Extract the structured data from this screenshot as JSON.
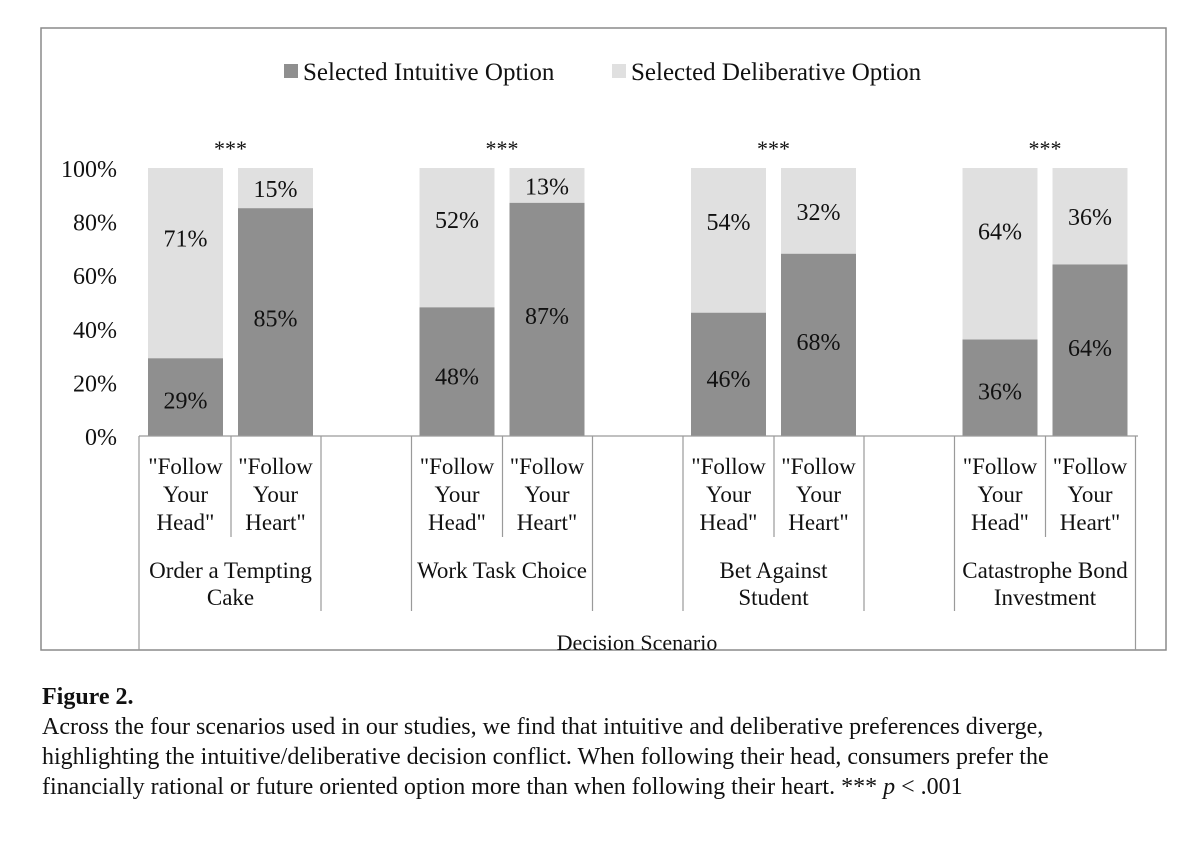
{
  "chart_data": {
    "type": "bar",
    "stacked": true,
    "legend_position": "top",
    "legend": [
      "Selected Intuitive Option",
      "Selected Deliberative Option"
    ],
    "colors": {
      "intuitive": "#8f8f8f",
      "deliberative": "#e0e0e0"
    },
    "y_ticks": [
      "0%",
      "20%",
      "40%",
      "60%",
      "80%",
      "100%"
    ],
    "ylim": [
      0,
      100
    ],
    "xlabel": "Decision Scenario",
    "significance_marker": "***",
    "groups": [
      {
        "name": "Order a Tempting Cake",
        "name_lines": [
          "Order a Tempting",
          "Cake"
        ],
        "bars": [
          {
            "label_lines": [
              "\"Follow",
              "Your",
              "Head\""
            ],
            "intuitive": 29,
            "deliberative": 71
          },
          {
            "label_lines": [
              "\"Follow",
              "Your",
              "Heart\""
            ],
            "intuitive": 85,
            "deliberative": 15
          }
        ]
      },
      {
        "name": "Work Task Choice",
        "name_lines": [
          "Work Task Choice"
        ],
        "bars": [
          {
            "label_lines": [
              "\"Follow",
              "Your",
              "Head\""
            ],
            "intuitive": 48,
            "deliberative": 52
          },
          {
            "label_lines": [
              "\"Follow",
              "Your",
              "Heart\""
            ],
            "intuitive": 87,
            "deliberative": 13
          }
        ]
      },
      {
        "name": "Bet Against Student",
        "name_lines": [
          "Bet Against",
          "Student"
        ],
        "bars": [
          {
            "label_lines": [
              "\"Follow",
              "Your",
              "Head\""
            ],
            "intuitive": 46,
            "deliberative": 54
          },
          {
            "label_lines": [
              "\"Follow",
              "Your",
              "Heart\""
            ],
            "intuitive": 68,
            "deliberative": 32
          }
        ]
      },
      {
        "name": "Catastrophe Bond Investment",
        "name_lines": [
          "Catastrophe Bond",
          "Investment"
        ],
        "bars": [
          {
            "label_lines": [
              "\"Follow",
              "Your",
              "Head\""
            ],
            "intuitive": 36,
            "deliberative": 64
          },
          {
            "label_lines": [
              "\"Follow",
              "Your",
              "Heart\""
            ],
            "intuitive": 64,
            "deliberative": 36
          }
        ]
      }
    ]
  },
  "caption": {
    "title": "Figure 2.",
    "text": "Across the four scenarios used in our studies, we find that intuitive and deliberative preferences diverge, highlighting the intuitive/deliberative decision conflict. When following their head, consumers prefer the financially rational or future oriented option more than when following their heart. *** ",
    "p_symbol": "p",
    "p_value": " < .001"
  }
}
